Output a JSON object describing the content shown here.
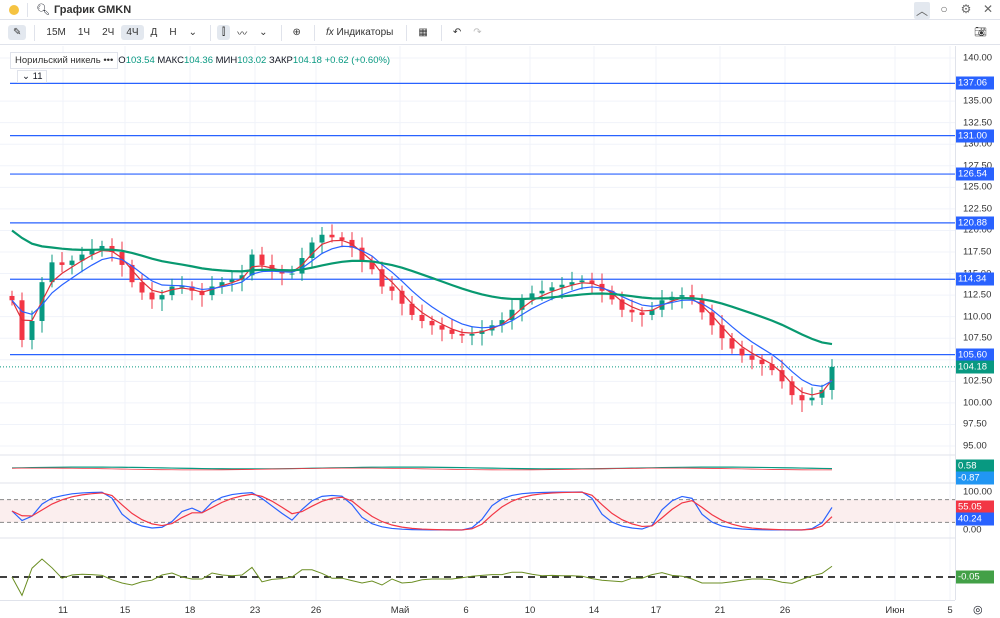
{
  "window": {
    "title": "График GMKN",
    "icons": [
      "search-icon",
      "chevron-up-icon",
      "circle-icon",
      "gear-icon",
      "close-icon"
    ]
  },
  "toolbar": {
    "intervals": [
      "15М",
      "1Ч",
      "2Ч",
      "4Ч",
      "Д",
      "Н"
    ],
    "active_interval": "4Ч",
    "indicators_label": "Индикаторы"
  },
  "legend": {
    "name": "Норильский никель",
    "dots": "•••",
    "open_label": "О",
    "open": "103.54",
    "high_label": "МАКС",
    "high": "104.36",
    "low_label": "МИН",
    "low": "103.02",
    "close_label": "ЗАКР",
    "close": "104.18",
    "change": "+0.62 (+0.60%)",
    "collapse_count": "11"
  },
  "colors": {
    "up": "#089981",
    "down": "#f23645",
    "ma_fast": "#e0303a",
    "ma_mid": "#2962ff",
    "ma_slow": "#089970",
    "hline": "#2962ff",
    "osc": "#6b8e23"
  },
  "chart_data": {
    "type": "candlestick",
    "ylim": [
      95,
      140
    ],
    "y_ticks": [
      "140.00",
      "135.00",
      "132.50",
      "130.00",
      "127.50",
      "125.00",
      "122.50",
      "120.00",
      "117.50",
      "115.00",
      "112.50",
      "110.00",
      "107.50",
      "105.00",
      "102.50",
      "100.00",
      "97.50",
      "95.00"
    ],
    "x_ticks": [
      "11",
      "15",
      "18",
      "23",
      "26",
      "Май",
      "6",
      "10",
      "14",
      "17",
      "21",
      "26",
      "Июн",
      "5"
    ],
    "closes": [
      111.9,
      107.3,
      109.5,
      114,
      116.3,
      116,
      116.5,
      117.2,
      117.8,
      118.2,
      117.5,
      116,
      114,
      112.8,
      112,
      112.5,
      113.5,
      113.5,
      113,
      112.5,
      113.5,
      114,
      114.3,
      114.8,
      117.2,
      116,
      115.4,
      115,
      115,
      116.8,
      118.6,
      119.5,
      119.2,
      118.9,
      118,
      116.5,
      115.5,
      113.5,
      113,
      111.5,
      110.2,
      109.5,
      109,
      108.5,
      108,
      107.8,
      108,
      108.4,
      109,
      109.6,
      110.8,
      112,
      112.7,
      113,
      113.4,
      113.7,
      114,
      114.2,
      113.8,
      113,
      112,
      110.8,
      110.5,
      110.2,
      110.8,
      111.9,
      112.3,
      112.5,
      112,
      110.5,
      109,
      107.5,
      106.3,
      105.5,
      105,
      104.5,
      103.8,
      102.5,
      100.9,
      100.3,
      100.6,
      101.5,
      104.18
    ],
    "horizontal_lines": [
      "137.06",
      "131.00",
      "126.54",
      "120.88",
      "114.34",
      "105.60"
    ],
    "last_price": "104.18",
    "panes": [
      {
        "labels": [
          "0.58",
          "-0.87"
        ],
        "label_colors": [
          "#089981",
          "#2196f3"
        ]
      },
      {
        "ticks": [
          "100.00",
          "0.00"
        ],
        "levels": [
          80,
          20
        ],
        "labels": [
          "55.05",
          "40.24"
        ],
        "label_colors": [
          "#f23645",
          "#2962ff"
        ]
      },
      {
        "labels": [
          "-0.05"
        ],
        "label_colors": [
          "#43a047"
        ]
      }
    ]
  }
}
